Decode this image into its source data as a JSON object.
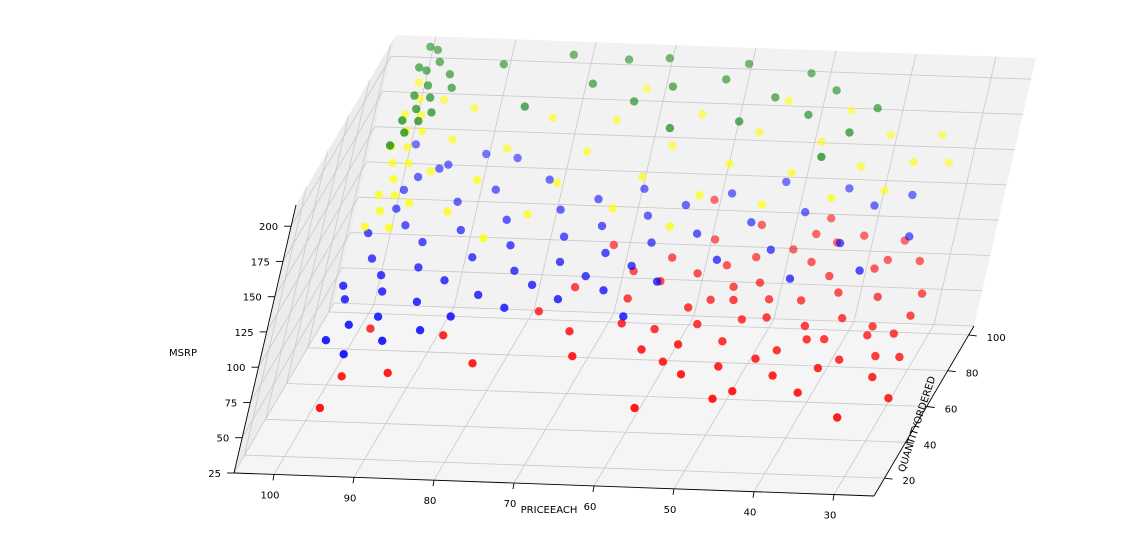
{
  "chart_data": {
    "type": "scatter3d",
    "title": "",
    "xlabel": "PRICEEACH",
    "ylabel": "QUANTITYORDERED",
    "zlabel": "MSRP",
    "xlim": [
      25,
      105
    ],
    "ylim": [
      10,
      105
    ],
    "zlim": [
      25,
      215
    ],
    "x_ticks": [
      100,
      90,
      80,
      70,
      60,
      50,
      40,
      30
    ],
    "y_ticks": [
      20,
      40,
      60,
      80,
      100
    ],
    "z_ticks": [
      25,
      50,
      75,
      100,
      125,
      150,
      175,
      200
    ],
    "grid": true,
    "legend": "none",
    "series": [
      {
        "name": "",
        "color": "#ff0000",
        "points": [
          [
            97,
            20,
            60
          ],
          [
            96,
            30,
            70
          ],
          [
            95,
            45,
            85
          ],
          [
            90,
            25,
            80
          ],
          [
            85,
            35,
            95
          ],
          [
            80,
            28,
            85
          ],
          [
            75,
            50,
            95
          ],
          [
            72,
            60,
            100
          ],
          [
            70,
            80,
            105
          ],
          [
            68,
            30,
            90
          ],
          [
            66,
            70,
            100
          ],
          [
            64,
            45,
            95
          ],
          [
            62,
            65,
            100
          ],
          [
            60,
            35,
            90
          ],
          [
            58,
            85,
            105
          ],
          [
            57,
            55,
            95
          ],
          [
            56,
            40,
            88
          ],
          [
            55,
            75,
            100
          ],
          [
            54,
            30,
            80
          ],
          [
            53,
            90,
            110
          ],
          [
            52,
            60,
            95
          ],
          [
            51,
            45,
            85
          ],
          [
            50,
            70,
            95
          ],
          [
            49,
            25,
            70
          ],
          [
            48,
            85,
            100
          ],
          [
            47,
            55,
            90
          ],
          [
            46,
            40,
            80
          ],
          [
            45,
            95,
            110
          ],
          [
            44,
            65,
            90
          ],
          [
            43,
            35,
            75
          ],
          [
            42,
            75,
            95
          ],
          [
            41,
            50,
            82
          ],
          [
            40,
            90,
            105
          ],
          [
            39,
            30,
            70
          ],
          [
            38,
            60,
            85
          ],
          [
            37,
            80,
            95
          ],
          [
            36,
            45,
            75
          ],
          [
            35,
            70,
            88
          ],
          [
            34,
            55,
            80
          ],
          [
            33,
            25,
            60
          ],
          [
            32,
            85,
            95
          ],
          [
            31,
            40,
            70
          ],
          [
            30,
            65,
            82
          ],
          [
            29,
            50,
            72
          ],
          [
            28,
            35,
            62
          ],
          [
            60,
            95,
            120
          ],
          [
            58,
            70,
            100
          ],
          [
            55,
            50,
            90
          ],
          [
            52,
            80,
            100
          ],
          [
            50,
            35,
            80
          ],
          [
            48,
            65,
            90
          ],
          [
            46,
            90,
            105
          ],
          [
            44,
            45,
            80
          ],
          [
            42,
            55,
            85
          ],
          [
            40,
            70,
            90
          ],
          [
            38,
            40,
            75
          ],
          [
            36,
            85,
            95
          ],
          [
            34,
            60,
            80
          ],
          [
            32,
            50,
            72
          ],
          [
            30,
            75,
            85
          ],
          [
            45,
            80,
            98
          ],
          [
            50,
            55,
            88
          ],
          [
            55,
            62,
            92
          ],
          [
            60,
            48,
            88
          ],
          [
            65,
            58,
            96
          ],
          [
            70,
            42,
            92
          ],
          [
            62,
            75,
            104
          ],
          [
            57,
            35,
            82
          ],
          [
            53,
            68,
            94
          ],
          [
            47,
            28,
            72
          ],
          [
            43,
            88,
            102
          ],
          [
            39,
            52,
            80
          ],
          [
            35,
            92,
            100
          ],
          [
            31,
            58,
            78
          ],
          [
            58,
            20,
            68
          ]
        ]
      },
      {
        "name": "",
        "color": "#0000ff",
        "points": [
          [
            99,
            30,
            95
          ],
          [
            99,
            45,
            105
          ],
          [
            98,
            60,
            115
          ],
          [
            98,
            80,
            125
          ],
          [
            97,
            90,
            135
          ],
          [
            97,
            35,
            100
          ],
          [
            96,
            55,
            110
          ],
          [
            96,
            75,
            120
          ],
          [
            95,
            50,
            105
          ],
          [
            95,
            95,
            135
          ],
          [
            94,
            40,
            100
          ],
          [
            93,
            70,
            115
          ],
          [
            92,
            60,
            110
          ],
          [
            91,
            85,
            125
          ],
          [
            90,
            45,
            105
          ],
          [
            89,
            75,
            118
          ],
          [
            88,
            55,
            108
          ],
          [
            87,
            90,
            128
          ],
          [
            86,
            65,
            112
          ],
          [
            85,
            40,
            102
          ],
          [
            84,
            80,
            120
          ],
          [
            83,
            50,
            105
          ],
          [
            82,
            70,
            115
          ],
          [
            81,
            95,
            130
          ],
          [
            80,
            60,
            110
          ],
          [
            79,
            45,
            103
          ],
          [
            78,
            85,
            122
          ],
          [
            77,
            55,
            107
          ],
          [
            76,
            75,
            116
          ],
          [
            75,
            65,
            111
          ],
          [
            74,
            90,
            124
          ],
          [
            73,
            50,
            104
          ],
          [
            72,
            80,
            118
          ],
          [
            71,
            60,
            108
          ],
          [
            70,
            70,
            112
          ],
          [
            69,
            95,
            126
          ],
          [
            68,
            55,
            105
          ],
          [
            67,
            85,
            120
          ],
          [
            66,
            65,
            110
          ],
          [
            65,
            75,
            114
          ],
          [
            64,
            45,
            100
          ],
          [
            63,
            90,
            122
          ],
          [
            62,
            60,
            106
          ],
          [
            60,
            80,
            115
          ],
          [
            58,
            95,
            125
          ],
          [
            56,
            70,
            110
          ],
          [
            54,
            85,
            118
          ],
          [
            52,
            100,
            128
          ],
          [
            50,
            75,
            112
          ],
          [
            48,
            90,
            120
          ],
          [
            46,
            65,
            105
          ],
          [
            44,
            100,
            125
          ],
          [
            42,
            80,
            112
          ],
          [
            40,
            95,
            120
          ],
          [
            38,
            70,
            106
          ],
          [
            36,
            100,
            122
          ],
          [
            34,
            85,
            112
          ],
          [
            100,
            70,
            120
          ],
          [
            100,
            50,
            108
          ],
          [
            99,
            100,
            145
          ],
          [
            98,
            85,
            132
          ],
          [
            96,
            25,
            92
          ],
          [
            94,
            95,
            138
          ],
          [
            92,
            30,
            96
          ],
          [
            90,
            100,
            140
          ],
          [
            88,
            35,
            98
          ],
          [
            86,
            100,
            138
          ]
        ]
      },
      {
        "name": "",
        "color": "#ffff00",
        "points": [
          [
            99,
            50,
            150
          ],
          [
            99,
            60,
            160
          ],
          [
            99,
            70,
            170
          ],
          [
            99,
            80,
            180
          ],
          [
            99,
            90,
            190
          ],
          [
            98,
            55,
            155
          ],
          [
            98,
            65,
            165
          ],
          [
            98,
            75,
            175
          ],
          [
            98,
            85,
            185
          ],
          [
            97,
            60,
            160
          ],
          [
            97,
            70,
            170
          ],
          [
            97,
            80,
            180
          ],
          [
            96,
            50,
            150
          ],
          [
            96,
            90,
            190
          ],
          [
            95,
            60,
            155
          ],
          [
            94,
            70,
            165
          ],
          [
            93,
            80,
            175
          ],
          [
            92,
            90,
            185
          ],
          [
            90,
            60,
            150
          ],
          [
            88,
            70,
            160
          ],
          [
            86,
            80,
            170
          ],
          [
            84,
            50,
            145
          ],
          [
            82,
            90,
            180
          ],
          [
            80,
            60,
            150
          ],
          [
            78,
            70,
            160
          ],
          [
            76,
            80,
            170
          ],
          [
            74,
            90,
            180
          ],
          [
            72,
            100,
            190
          ],
          [
            70,
            65,
            150
          ],
          [
            68,
            75,
            160
          ],
          [
            66,
            85,
            170
          ],
          [
            64,
            95,
            180
          ],
          [
            62,
            60,
            145
          ],
          [
            60,
            70,
            155
          ],
          [
            58,
            80,
            165
          ],
          [
            56,
            90,
            175
          ],
          [
            54,
            100,
            185
          ],
          [
            52,
            70,
            150
          ],
          [
            50,
            80,
            160
          ],
          [
            48,
            90,
            170
          ],
          [
            46,
            100,
            180
          ],
          [
            44,
            75,
            150
          ],
          [
            42,
            85,
            160
          ],
          [
            40,
            95,
            170
          ],
          [
            38,
            80,
            150
          ],
          [
            36,
            90,
            158
          ],
          [
            34,
            100,
            165
          ],
          [
            32,
            95,
            152
          ],
          [
            100,
            75,
            175
          ],
          [
            100,
            85,
            185
          ],
          [
            100,
            95,
            195
          ]
        ]
      },
      {
        "name": "",
        "color": "#008000",
        "points": [
          [
            99,
            60,
            195
          ],
          [
            99,
            70,
            200
          ],
          [
            99,
            80,
            205
          ],
          [
            99,
            90,
            210
          ],
          [
            99,
            100,
            212
          ],
          [
            98,
            65,
            198
          ],
          [
            98,
            75,
            202
          ],
          [
            98,
            85,
            206
          ],
          [
            98,
            95,
            210
          ],
          [
            97,
            70,
            200
          ],
          [
            97,
            80,
            204
          ],
          [
            96,
            75,
            200
          ],
          [
            96,
            90,
            208
          ],
          [
            95,
            85,
            205
          ],
          [
            90,
            95,
            210
          ],
          [
            85,
            80,
            200
          ],
          [
            82,
            100,
            212
          ],
          [
            78,
            90,
            205
          ],
          [
            75,
            100,
            210
          ],
          [
            72,
            85,
            200
          ],
          [
            70,
            100,
            212
          ],
          [
            68,
            90,
            205
          ],
          [
            66,
            75,
            195
          ],
          [
            62,
            95,
            205
          ],
          [
            60,
            100,
            210
          ],
          [
            58,
            80,
            195
          ],
          [
            55,
            90,
            200
          ],
          [
            52,
            100,
            205
          ],
          [
            50,
            85,
            195
          ],
          [
            48,
            95,
            200
          ],
          [
            46,
            70,
            185
          ],
          [
            44,
            80,
            190
          ],
          [
            42,
            90,
            195
          ],
          [
            100,
            90,
            212
          ],
          [
            100,
            100,
            214
          ]
        ]
      }
    ]
  }
}
